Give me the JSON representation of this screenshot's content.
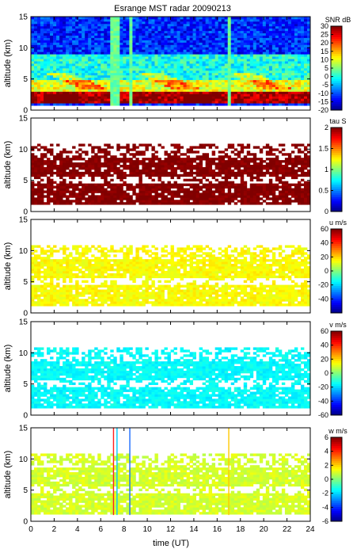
{
  "chart_data": {
    "title": "Esrange MST radar 20090213",
    "type": "heatmap",
    "x": {
      "label": "time (UT)",
      "range": [
        0,
        24
      ],
      "ticks": [
        0,
        2,
        4,
        6,
        8,
        10,
        12,
        14,
        16,
        18,
        20,
        22,
        24
      ]
    },
    "panels": [
      {
        "id": "snr",
        "ylabel": "altitude (km)",
        "yrange": [
          0,
          15
        ],
        "yticks": [
          0,
          5,
          10,
          15
        ],
        "colorbar": {
          "label": "SNR dB",
          "range": [
            -20,
            30
          ],
          "ticks": [
            -20,
            -15,
            -10,
            -5,
            0,
            5,
            10,
            15,
            20,
            25,
            30
          ]
        },
        "description_layers": [
          {
            "alt_range": [
              1,
              3
            ],
            "value": 28
          },
          {
            "alt_range": [
              3,
              5
            ],
            "value": 10
          },
          {
            "alt_range": [
              5,
              9
            ],
            "value": 0
          },
          {
            "alt_range": [
              9,
              15
            ],
            "value": -12
          }
        ],
        "interference_times": [
          7.1,
          7.4,
          8.5,
          17.0
        ]
      },
      {
        "id": "tau",
        "ylabel": "altitude (km)",
        "yrange": [
          0,
          15
        ],
        "yticks": [
          0,
          5,
          10,
          15
        ],
        "colorbar": {
          "label": "tau S",
          "range": [
            0,
            2
          ],
          "ticks": [
            0,
            0.5,
            1,
            1.5,
            2
          ]
        },
        "typical_value": 2,
        "data_alt_range": [
          1,
          11
        ]
      },
      {
        "id": "u",
        "ylabel": "altitude (km)",
        "yrange": [
          0,
          15
        ],
        "yticks": [
          0,
          5,
          10,
          15
        ],
        "colorbar": {
          "label": "u m/s",
          "range": [
            -60,
            60
          ],
          "ticks": [
            -40,
            -20,
            0,
            20,
            40,
            60
          ]
        },
        "typical_value": 15,
        "data_alt_range": [
          1,
          11
        ]
      },
      {
        "id": "v",
        "ylabel": "altitude (km)",
        "yrange": [
          0,
          15
        ],
        "yticks": [
          0,
          5,
          10,
          15
        ],
        "colorbar": {
          "label": "v m/s",
          "range": [
            -60,
            60
          ],
          "ticks": [
            -60,
            -40,
            -20,
            0,
            20,
            40,
            60
          ]
        },
        "typical_value": -15,
        "data_alt_range": [
          1,
          11
        ]
      },
      {
        "id": "w",
        "ylabel": "altitude (km)",
        "yrange": [
          0,
          15
        ],
        "yticks": [
          0,
          5,
          10,
          15
        ],
        "colorbar": {
          "label": "w m/s",
          "range": [
            -6,
            6
          ],
          "ticks": [
            -6,
            -4,
            -2,
            0,
            2,
            4,
            6
          ]
        },
        "typical_value": 1,
        "data_alt_range": [
          1,
          11
        ],
        "interference_times": [
          7.1,
          7.4,
          8.5,
          17.0
        ]
      }
    ]
  }
}
